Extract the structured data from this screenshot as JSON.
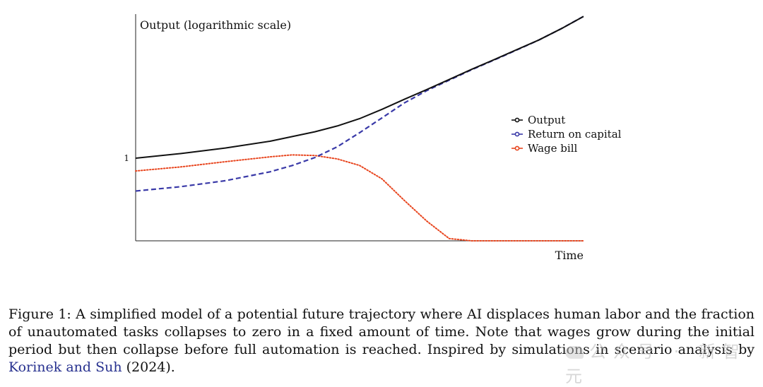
{
  "chart_data": {
    "type": "line",
    "ylabel": "Output (logarithmic scale)",
    "xlabel": "Time",
    "yscale": "log",
    "yticks": [
      {
        "value": 1,
        "label": "1"
      }
    ],
    "xlim": [
      0,
      10
    ],
    "ylim": [
      0.3,
      8.0
    ],
    "grid": false,
    "legend_position": "right",
    "series": [
      {
        "name": "Output",
        "color": "#111111",
        "style": "solid",
        "x": [
          0,
          1,
          2,
          3,
          4,
          4.5,
          5,
          5.5,
          6,
          6.5,
          7,
          7.5,
          8,
          8.5,
          9,
          9.5,
          10
        ],
        "y": [
          1.0,
          1.07,
          1.16,
          1.28,
          1.47,
          1.6,
          1.78,
          2.04,
          2.36,
          2.72,
          3.15,
          3.65,
          4.2,
          4.85,
          5.6,
          6.6,
          7.9
        ]
      },
      {
        "name": "Return on capital",
        "color": "#3a3aa8",
        "style": "dashed",
        "x": [
          0,
          1,
          2,
          3,
          3.5,
          4,
          4.5,
          5,
          5.5,
          6,
          6.5,
          7,
          7.5,
          8,
          8.5,
          9,
          9.5,
          10
        ],
        "y": [
          0.62,
          0.66,
          0.72,
          0.82,
          0.9,
          1.01,
          1.18,
          1.45,
          1.8,
          2.24,
          2.68,
          3.12,
          3.63,
          4.18,
          4.83,
          5.6,
          6.6,
          7.9
        ]
      },
      {
        "name": "Wage bill",
        "color": "#e8451e",
        "style": "dotted",
        "x": [
          0,
          1,
          2,
          3,
          3.5,
          4,
          4.5,
          5,
          5.5,
          6,
          6.5,
          7,
          7.5,
          8,
          9,
          10
        ],
        "y": [
          0.83,
          0.88,
          0.95,
          1.02,
          1.05,
          1.04,
          0.99,
          0.9,
          0.74,
          0.54,
          0.4,
          0.31,
          0.3,
          0.3,
          0.3,
          0.3
        ]
      }
    ]
  },
  "caption": {
    "text": "Figure 1: A simplified model of a potential future trajectory where AI displaces human labor and the fraction of unautomated tasks collapses to zero in a fixed amount of time. Note that wages grow during the initial period but then collapse before full automation is reached. Inspired by simulations in scenario analysis by ",
    "link_text": "Korinek and Suh",
    "citation_year": " (2024)",
    "end": "."
  },
  "watermark": {
    "text": "公众号 · 新智元"
  }
}
